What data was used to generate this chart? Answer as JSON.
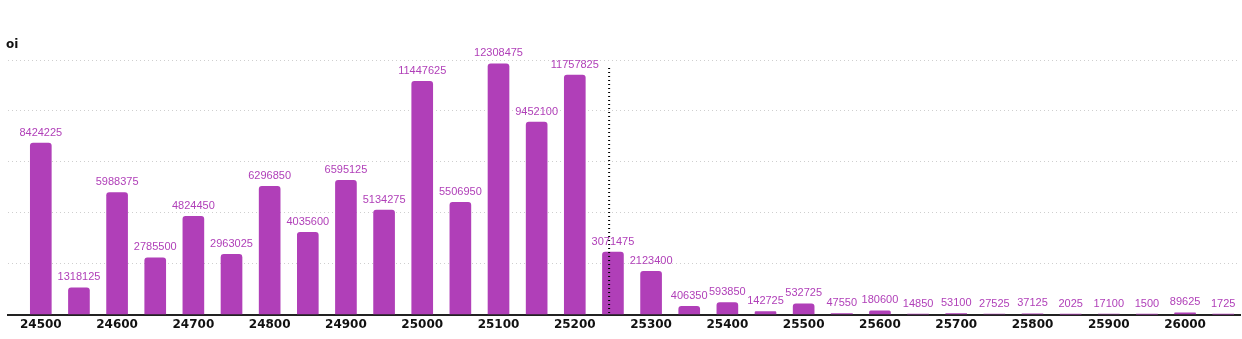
{
  "chart_data": {
    "type": "bar",
    "ylabel": "oi",
    "x": [
      24500,
      24550,
      24600,
      24650,
      24700,
      24750,
      24800,
      24850,
      24900,
      24950,
      25000,
      25050,
      25100,
      25150,
      25200,
      25250,
      25300,
      25350,
      25400,
      25450,
      25500,
      25550,
      25600,
      25650,
      25700,
      25750,
      25800,
      25850,
      25900,
      25950,
      26000,
      26050
    ],
    "values": [
      8424225,
      1318125,
      5988375,
      2785500,
      4824450,
      2963025,
      6296850,
      4035600,
      6595125,
      5134275,
      11447625,
      5506950,
      12308475,
      9452100,
      11757825,
      3071475,
      2123400,
      406350,
      593850,
      142725,
      532725,
      47550,
      180600,
      14850,
      53100,
      27525,
      37125,
      2025,
      17100,
      1500,
      89625,
      1725
    ],
    "color": "#b03fb8",
    "data_labels": true,
    "xlim": [
      24457,
      26072
    ],
    "xticks": [
      24500,
      24600,
      24700,
      24800,
      24900,
      25000,
      25100,
      25200,
      25300,
      25400,
      25500,
      25600,
      25700,
      25800,
      25900,
      26000
    ],
    "ylim": [
      0,
      12500000
    ],
    "yticks": [
      0,
      2500000,
      5000000,
      7500000,
      10000000,
      12500000
    ],
    "tick_labels": "x",
    "grid": "y",
    "ref_lines": [
      {
        "axis": "x",
        "value": 25245,
        "color": "#000000",
        "line_style": "dotted"
      }
    ]
  }
}
